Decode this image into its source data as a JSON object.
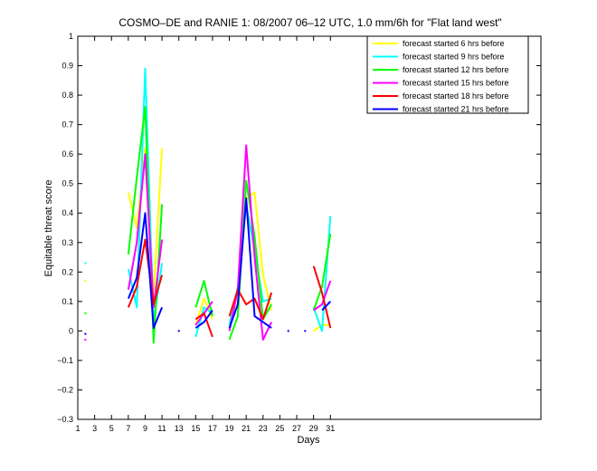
{
  "chart_data": {
    "type": "line",
    "title": "COSMO–DE and RANIE 1: 08/2007 06–12 UTC, 1.0 mm/6h for \"Flat land west\"",
    "xlabel": "Days",
    "ylabel": "Equitable threat score",
    "xlim": [
      1,
      56
    ],
    "ylim": [
      -0.3,
      1
    ],
    "xticks": [
      1,
      3,
      5,
      7,
      9,
      11,
      13,
      15,
      17,
      19,
      21,
      23,
      25,
      27,
      29,
      31
    ],
    "xtick_labels": [
      "1",
      "3",
      "5",
      "7",
      "9",
      "11",
      "13",
      "15",
      "17",
      "19",
      "21",
      "23",
      "25",
      "27",
      "29",
      "31"
    ],
    "yticks": [
      -0.3,
      -0.2,
      -0.1,
      0,
      0.1,
      0.2,
      0.3,
      0.4,
      0.5,
      0.6,
      0.7,
      0.8,
      0.9,
      1
    ],
    "ytick_labels": [
      "−0.3",
      "−0.2",
      "−0.1",
      "0",
      "0.1",
      "0.2",
      "0.3",
      "0.4",
      "0.5",
      "0.6",
      "0.7",
      "0.8",
      "0.9",
      "1"
    ],
    "grid": false,
    "legend_position": "top-right",
    "series": [
      {
        "name": "forecast started 6 hrs before",
        "color": "#ffff00",
        "values": [
          [
            1.9,
            0.17
          ],
          [
            null,
            null
          ],
          [
            7,
            0.47
          ],
          [
            8,
            0.35
          ],
          [
            9,
            0.62
          ],
          [
            10,
            0.12
          ],
          [
            11,
            0.62
          ],
          [
            null,
            null
          ],
          [
            15,
            0.02
          ],
          [
            16,
            0.11
          ],
          [
            17,
            0.04
          ],
          [
            null,
            null
          ],
          [
            19,
            0.05
          ],
          [
            20,
            0.09
          ],
          [
            21,
            0.45
          ],
          [
            22,
            0.47
          ],
          [
            23,
            0.19
          ],
          [
            24,
            0.07
          ],
          [
            null,
            null
          ],
          [
            29,
            0.0
          ],
          [
            30,
            0.02
          ],
          [
            31,
            0.02
          ]
        ]
      },
      {
        "name": "forecast started 9 hrs before",
        "color": "#00ffff",
        "values": [
          [
            1.9,
            0.23
          ],
          [
            null,
            null
          ],
          [
            7,
            0.21
          ],
          [
            8,
            0.08
          ],
          [
            9,
            0.89
          ],
          [
            10,
            0.03
          ],
          [
            11,
            0.23
          ],
          [
            null,
            null
          ],
          [
            15,
            -0.02
          ],
          [
            16,
            0.08
          ],
          [
            17,
            0.06
          ],
          [
            null,
            null
          ],
          [
            19,
            0.02
          ],
          [
            20,
            0.15
          ],
          [
            21,
            0.43
          ],
          [
            22,
            0.27
          ],
          [
            23,
            0.1
          ],
          [
            24,
            0.11
          ],
          [
            null,
            null
          ],
          [
            29,
            0.08
          ],
          [
            30,
            0.0
          ],
          [
            31,
            0.39
          ]
        ]
      },
      {
        "name": "forecast started 12 hrs before",
        "color": "#00ff00",
        "values": [
          [
            1.9,
            0.06
          ],
          [
            null,
            null
          ],
          [
            7,
            0.26
          ],
          [
            8,
            0.52
          ],
          [
            9,
            0.76
          ],
          [
            10,
            -0.04
          ],
          [
            11,
            0.43
          ],
          [
            null,
            null
          ],
          [
            15,
            0.08
          ],
          [
            16,
            0.17
          ],
          [
            17,
            0.05
          ],
          [
            null,
            null
          ],
          [
            19,
            -0.03
          ],
          [
            20,
            0.05
          ],
          [
            21,
            0.51
          ],
          [
            22,
            0.32
          ],
          [
            23,
            0.04
          ],
          [
            24,
            0.09
          ],
          [
            null,
            null
          ],
          [
            29,
            0.07
          ],
          [
            30,
            0.15
          ],
          [
            31,
            0.33
          ]
        ]
      },
      {
        "name": "forecast started 15 hrs before",
        "color": "#ff00ff",
        "values": [
          [
            1.9,
            -0.03
          ],
          [
            null,
            null
          ],
          [
            7,
            0.14
          ],
          [
            8,
            0.3
          ],
          [
            9,
            0.6
          ],
          [
            10,
            0.08
          ],
          [
            11,
            0.31
          ],
          [
            null,
            null
          ],
          [
            15,
            0.02
          ],
          [
            16,
            0.06
          ],
          [
            17,
            0.1
          ],
          [
            null,
            null
          ],
          [
            19,
            0.0
          ],
          [
            20,
            0.14
          ],
          [
            21,
            0.63
          ],
          [
            22,
            0.25
          ],
          [
            23,
            -0.03
          ],
          [
            24,
            0.03
          ],
          [
            null,
            null
          ],
          [
            29,
            0.07
          ],
          [
            30,
            0.09
          ],
          [
            31,
            0.17
          ]
        ]
      },
      {
        "name": "forecast started 18 hrs before",
        "color": "#ff0000",
        "values": [
          [
            null,
            null
          ],
          [
            7,
            0.08
          ],
          [
            8,
            0.15
          ],
          [
            9,
            0.31
          ],
          [
            10,
            0.09
          ],
          [
            11,
            0.19
          ],
          [
            null,
            null
          ],
          [
            15,
            0.04
          ],
          [
            16,
            0.06
          ],
          [
            17,
            -0.02
          ],
          [
            null,
            null
          ],
          [
            19,
            0.05
          ],
          [
            20,
            0.14
          ],
          [
            21,
            0.09
          ],
          [
            22,
            0.11
          ],
          [
            23,
            0.04
          ],
          [
            24,
            0.13
          ],
          [
            null,
            null
          ],
          [
            29,
            0.22
          ],
          [
            30,
            0.13
          ],
          [
            31,
            0.01
          ]
        ]
      },
      {
        "name": "forecast started 21 hrs before",
        "color": "#0000ff",
        "values": [
          [
            1.9,
            -0.01
          ],
          [
            null,
            null
          ],
          [
            7,
            0.11
          ],
          [
            8,
            0.18
          ],
          [
            9,
            0.4
          ],
          [
            10,
            0.01
          ],
          [
            11,
            0.08
          ],
          [
            null,
            null
          ],
          [
            13,
            0.0
          ],
          [
            null,
            null
          ],
          [
            15,
            0.01
          ],
          [
            16,
            0.03
          ],
          [
            17,
            0.07
          ],
          [
            null,
            null
          ],
          [
            19,
            0.01
          ],
          [
            20,
            0.09
          ],
          [
            21,
            0.45
          ],
          [
            22,
            0.05
          ],
          [
            23,
            0.03
          ],
          [
            24,
            0.01
          ],
          [
            null,
            null
          ],
          [
            26,
            0.0
          ],
          [
            null,
            null
          ],
          [
            28,
            0.0
          ],
          [
            null,
            null
          ],
          [
            30,
            0.07
          ],
          [
            31,
            0.1
          ]
        ]
      }
    ]
  }
}
